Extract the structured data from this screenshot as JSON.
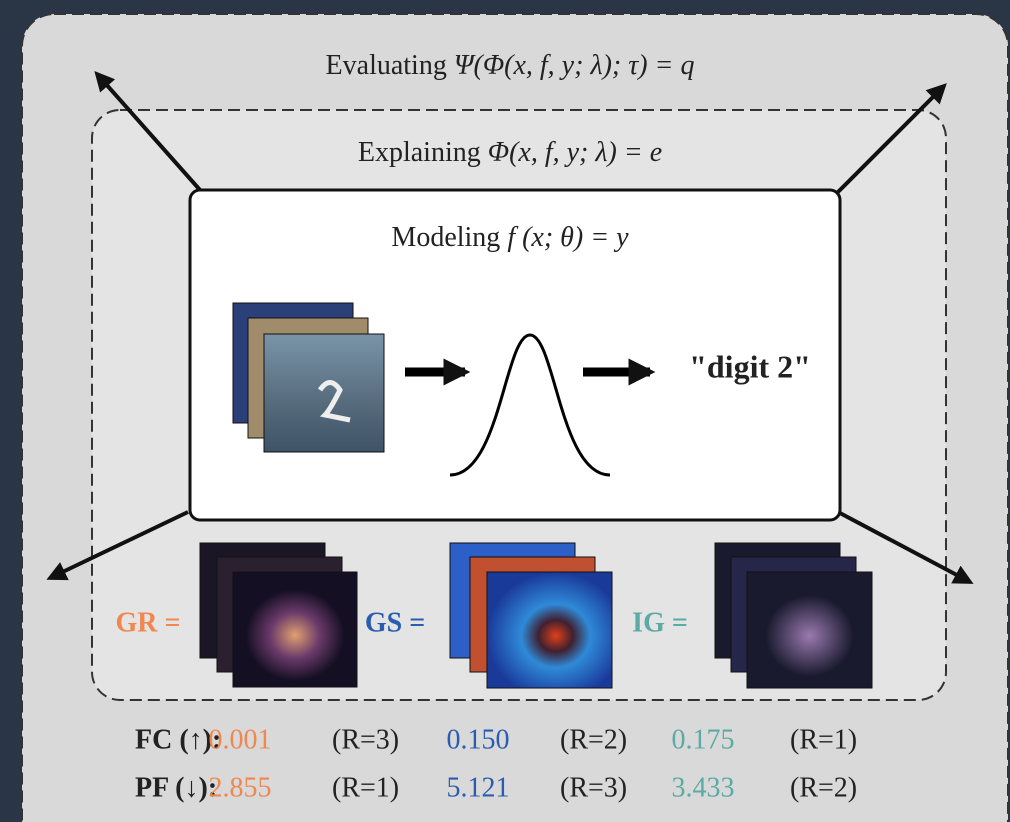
{
  "evaluating": {
    "label": "Evaluating",
    "formula": "Ψ(Φ(x, f, y; λ); τ) = q"
  },
  "explaining": {
    "label": "Explaining",
    "formula": "Φ(x, f, y; λ) = e"
  },
  "modeling": {
    "label": "Modeling",
    "formula": "f (x; θ) = y"
  },
  "output": "\"digit 2\"",
  "methods": [
    {
      "name": "GR =",
      "color": "#f0874f"
    },
    {
      "name": "GS =",
      "color": "#2a5db0"
    },
    {
      "name": "IG =",
      "color": "#5aaaa6"
    }
  ],
  "metrics": {
    "rows": [
      {
        "label": "FC (↑):",
        "cells": [
          {
            "value": "0.001",
            "rank": "(R=3)"
          },
          {
            "value": "0.150",
            "rank": "(R=2)"
          },
          {
            "value": "0.175",
            "rank": "(R=1)"
          }
        ]
      },
      {
        "label": "PF (↓):",
        "cells": [
          {
            "value": "2.855",
            "rank": "(R=1)"
          },
          {
            "value": "5.121",
            "rank": "(R=3)"
          },
          {
            "value": "3.433",
            "rank": "(R=2)"
          }
        ]
      }
    ]
  }
}
